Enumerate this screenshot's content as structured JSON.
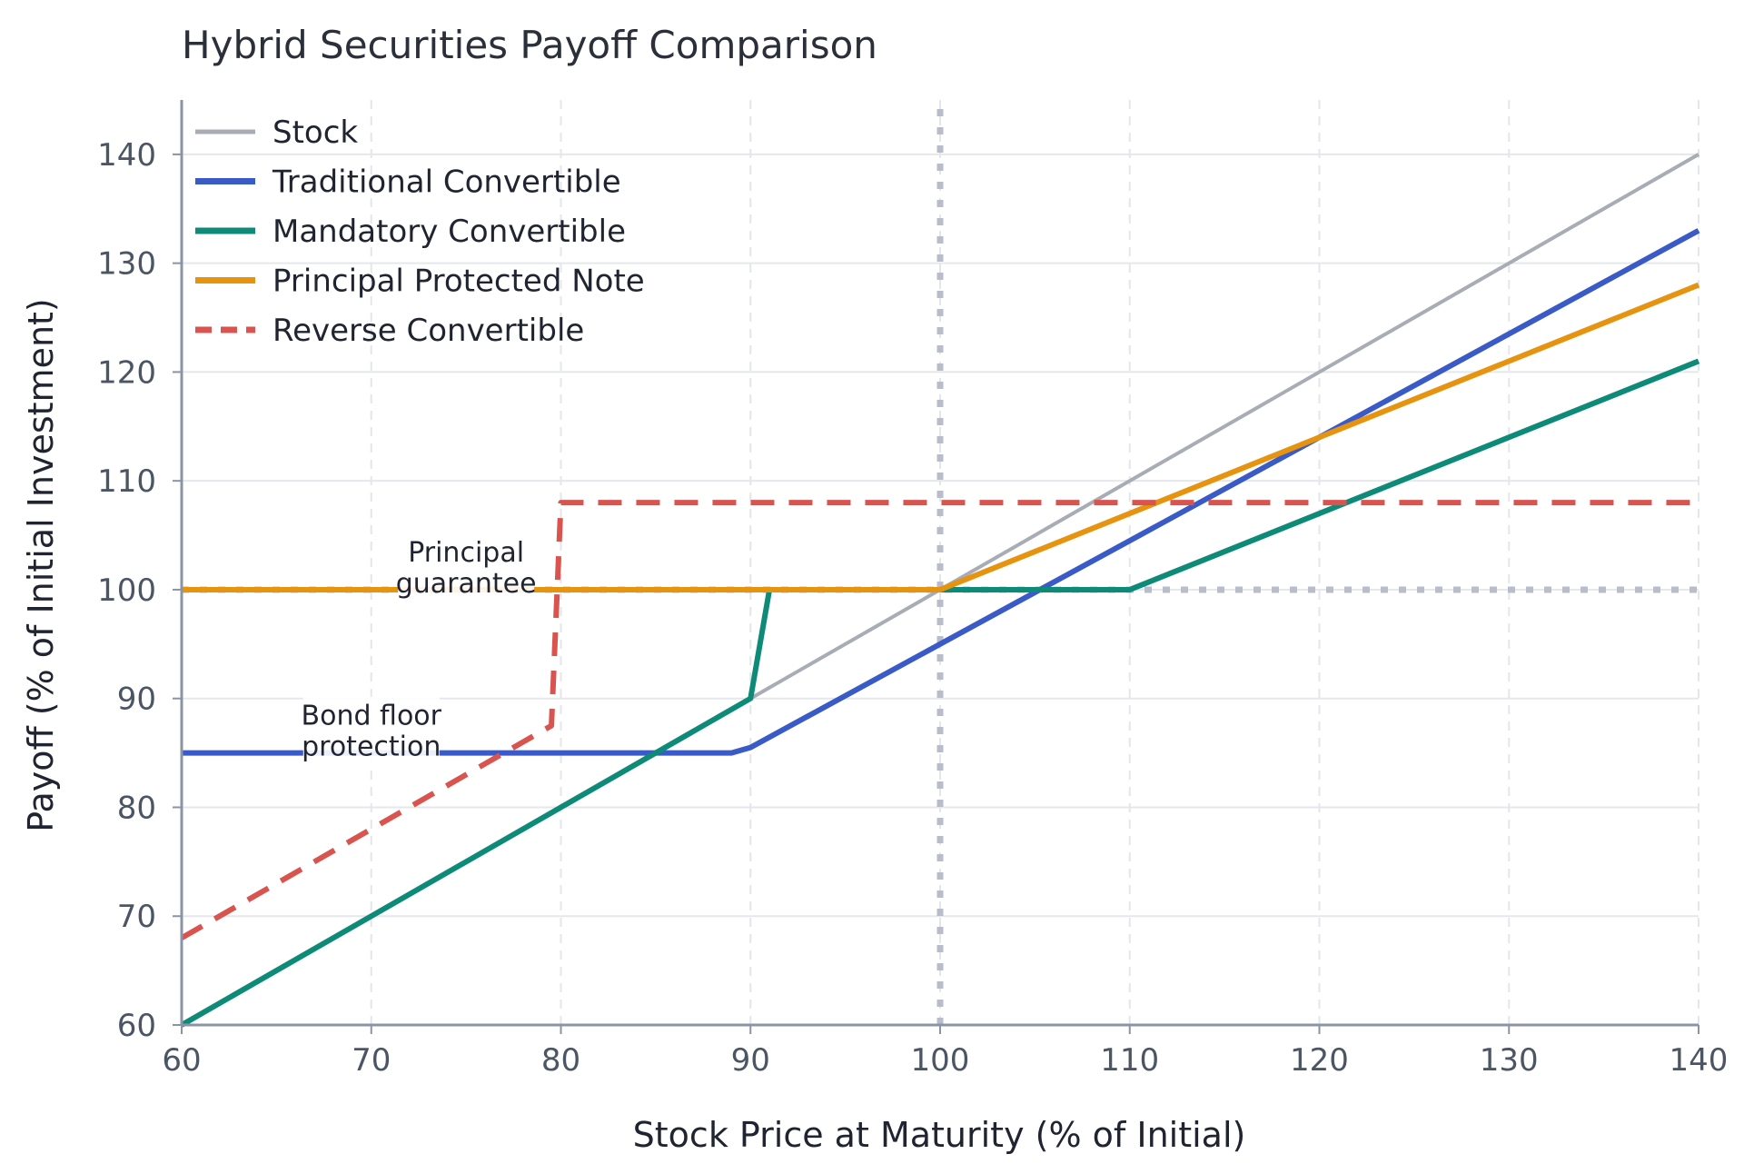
{
  "chart_data": {
    "type": "line",
    "title": "Hybrid Securities Payoff Comparison",
    "xlabel": "Stock Price at Maturity (% of Initial)",
    "ylabel": "Payoff (% of Initial Investment)",
    "xlim": [
      60,
      140
    ],
    "ylim": [
      60,
      145
    ],
    "xticks": [
      60,
      70,
      80,
      90,
      100,
      110,
      120,
      130,
      140
    ],
    "yticks": [
      60,
      70,
      80,
      90,
      100,
      110,
      120,
      130,
      140
    ],
    "grid": true,
    "legend_position": "top-left",
    "reference_lines": [
      {
        "orientation": "vertical",
        "value": 100,
        "style": "dotted",
        "color": "#b8bccb"
      },
      {
        "orientation": "horizontal",
        "value": 100,
        "style": "dotted",
        "color": "#b8bccb"
      }
    ],
    "series": [
      {
        "name": "Stock",
        "color": "#a8adb5",
        "style": "solid",
        "x": [
          60,
          140
        ],
        "y": [
          60,
          140
        ]
      },
      {
        "name": "Traditional Convertible",
        "color": "#3a5bc7",
        "style": "solid",
        "x": [
          60,
          89,
          90,
          140
        ],
        "y": [
          85,
          85,
          85.5,
          133
        ]
      },
      {
        "name": "Mandatory Convertible",
        "color": "#0e8a78",
        "style": "solid",
        "x": [
          60,
          90,
          91,
          110,
          140
        ],
        "y": [
          60,
          90,
          100,
          100,
          121
        ]
      },
      {
        "name": "Principal Protected Note",
        "color": "#e6930f",
        "style": "solid",
        "x": [
          60,
          100,
          140
        ],
        "y": [
          100,
          100,
          128
        ]
      },
      {
        "name": "Reverse Convertible",
        "color": "#d9534f",
        "style": "dashed",
        "x": [
          60,
          79.5,
          80,
          140
        ],
        "y": [
          68,
          87.5,
          108,
          108
        ]
      }
    ],
    "annotations": [
      {
        "text_lines": [
          "Principal",
          "guarantee"
        ],
        "x": 75,
        "y": 101.5
      },
      {
        "text_lines": [
          "Bond floor",
          "protection"
        ],
        "x": 70,
        "y": 86.5
      }
    ]
  }
}
